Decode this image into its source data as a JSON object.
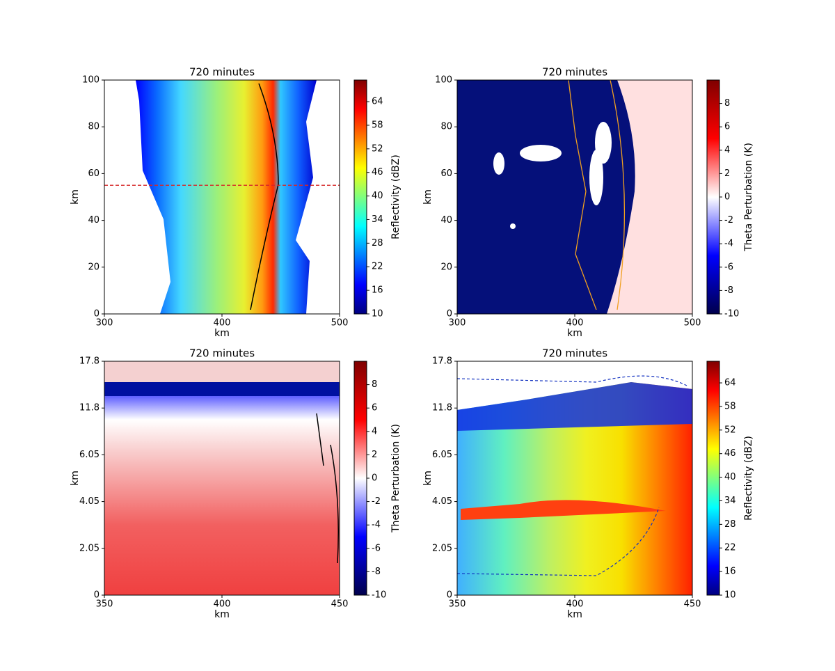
{
  "chart_data": [
    {
      "type": "heatmap",
      "title": "720 minutes",
      "xlabel": "km",
      "ylabel": "km",
      "xlim": [
        300,
        500
      ],
      "xticks": [
        300,
        400,
        500
      ],
      "ylim": [
        0,
        100
      ],
      "yticks": [
        0,
        20,
        40,
        60,
        80,
        100
      ],
      "hline": {
        "y": 55,
        "color": "#d62728"
      },
      "colorbar": {
        "label": "Reflectivity (dBZ)",
        "colormap": "jet",
        "lim": [
          10,
          69.5
        ],
        "ticks": [
          10,
          16,
          22,
          28,
          34,
          40,
          46,
          52,
          58,
          64
        ]
      }
    },
    {
      "type": "heatmap",
      "title": "720 minutes",
      "xlabel": "km",
      "ylabel": "km",
      "xlim": [
        300,
        500
      ],
      "xticks": [
        300,
        400,
        500
      ],
      "ylim": [
        0,
        100
      ],
      "yticks": [
        0,
        20,
        40,
        60,
        80,
        100
      ],
      "colorbar": {
        "label": "Theta Perturbation (K)",
        "colormap": "seismic",
        "lim": [
          -10,
          10
        ],
        "ticks": [
          -10,
          -8,
          -6,
          -4,
          -2,
          0,
          2,
          4,
          6,
          8
        ]
      }
    },
    {
      "type": "heatmap",
      "title": "720 minutes",
      "xlabel": "km",
      "ylabel": "km",
      "xlim": [
        350,
        450
      ],
      "xticks": [
        350,
        400,
        450
      ],
      "yscale": "tick-index",
      "yticks": [
        0,
        2.05,
        4.05,
        6.05,
        11.8,
        17.8
      ],
      "colorbar": {
        "label": "Theta Perturbation (K)",
        "colormap": "seismic",
        "lim": [
          -10,
          10
        ],
        "ticks": [
          -10,
          -8,
          -6,
          -4,
          -2,
          0,
          2,
          4,
          6,
          8
        ]
      }
    },
    {
      "type": "heatmap",
      "title": "720 minutes",
      "xlabel": "km",
      "ylabel": "km",
      "xlim": [
        350,
        450
      ],
      "xticks": [
        350,
        400,
        450
      ],
      "yscale": "tick-index",
      "yticks": [
        0,
        2.05,
        4.05,
        6.05,
        11.8,
        17.8
      ],
      "colorbar": {
        "label": "Reflectivity (dBZ)",
        "colormap": "jet",
        "lim": [
          10,
          69.5
        ],
        "ticks": [
          10,
          16,
          22,
          28,
          34,
          40,
          46,
          52,
          58,
          64
        ]
      }
    }
  ]
}
